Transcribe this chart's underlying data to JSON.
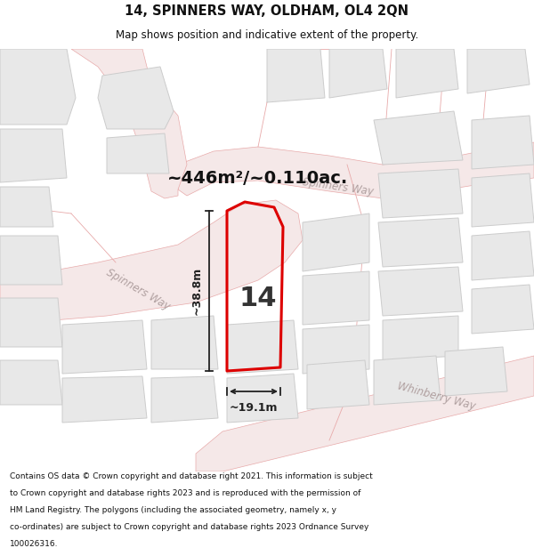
{
  "title_line1": "14, SPINNERS WAY, OLDHAM, OL4 2QN",
  "title_line2": "Map shows position and indicative extent of the property.",
  "area_text": "~446m²/~0.110ac.",
  "plot_number": "14",
  "dim_width": "~19.1m",
  "dim_height": "~38.8m",
  "road_label_spinners1": "Spinners Way",
  "road_label_spinners2": "Spinners Way",
  "road_label_whinberry": "Whinberry Way",
  "footer_lines": [
    "Contains OS data © Crown copyright and database right 2021. This information is subject",
    "to Crown copyright and database rights 2023 and is reproduced with the permission of",
    "HM Land Registry. The polygons (including the associated geometry, namely x, y",
    "co-ordinates) are subject to Crown copyright and database rights 2023 Ordnance Survey",
    "100026316."
  ],
  "bg_color": "#ffffff",
  "map_bg": "#f8f8f8",
  "plot_color": "#dd0000",
  "road_fill": "#f5e8e8",
  "road_stroke": "#e8aaaa",
  "building_fill": "#e8e8e8",
  "building_stroke": "#cccccc",
  "dim_color": "#222222",
  "road_label_color": "#b0a0a0",
  "area_text_color": "#111111",
  "title_color": "#111111",
  "footer_color": "#111111"
}
